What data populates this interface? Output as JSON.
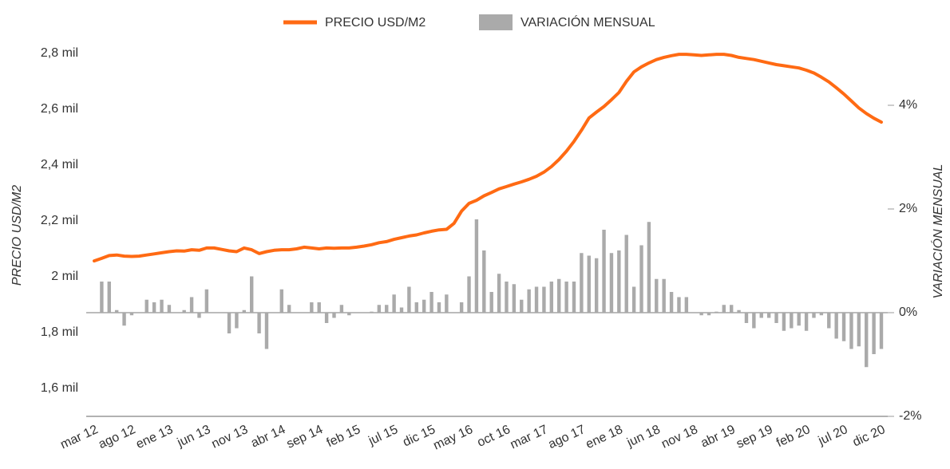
{
  "chart_data": {
    "type": "line",
    "categories": [
      "mar 12",
      null,
      null,
      null,
      null,
      "ago 12",
      null,
      null,
      null,
      null,
      "ene 13",
      null,
      null,
      null,
      null,
      "jun 13",
      null,
      null,
      null,
      null,
      "nov 13",
      null,
      null,
      null,
      null,
      "abr 14",
      null,
      null,
      null,
      null,
      "sep 14",
      null,
      null,
      null,
      null,
      "feb 15",
      null,
      null,
      null,
      null,
      "jul 15",
      null,
      null,
      null,
      null,
      "dic 15",
      null,
      null,
      null,
      null,
      "may 16",
      null,
      null,
      null,
      null,
      "oct 16",
      null,
      null,
      null,
      null,
      "mar 17",
      null,
      null,
      null,
      null,
      "ago 17",
      null,
      null,
      null,
      null,
      "ene 18",
      null,
      null,
      null,
      null,
      "jun 18",
      null,
      null,
      null,
      null,
      "nov 18",
      null,
      null,
      null,
      null,
      "abr 19",
      null,
      null,
      null,
      null,
      "sep 19",
      null,
      null,
      null,
      null,
      "feb 20",
      null,
      null,
      null,
      null,
      "jul 20",
      null,
      null,
      null,
      null,
      "dic 20"
    ],
    "series": [
      {
        "name": "PRECIO USD/M2",
        "type": "line",
        "color": "#ff6a13",
        "values": [
          2057,
          2066,
          2076,
          2078,
          2074,
          2073,
          2074,
          2078,
          2082,
          2086,
          2090,
          2093,
          2092,
          2097,
          2095,
          2103,
          2103,
          2098,
          2093,
          2090,
          2103,
          2097,
          2083,
          2090,
          2095,
          2097,
          2097,
          2100,
          2106,
          2103,
          2100,
          2103,
          2102,
          2103,
          2103,
          2106,
          2110,
          2115,
          2122,
          2126,
          2134,
          2140,
          2146,
          2150,
          2157,
          2163,
          2168,
          2170,
          2191,
          2235,
          2263,
          2274,
          2290,
          2302,
          2315,
          2323,
          2332,
          2340,
          2349,
          2360,
          2375,
          2395,
          2420,
          2450,
          2485,
          2525,
          2569,
          2590,
          2610,
          2634,
          2660,
          2700,
          2734,
          2752,
          2766,
          2778,
          2786,
          2792,
          2797,
          2797,
          2795,
          2793,
          2795,
          2797,
          2797,
          2793,
          2786,
          2782,
          2778,
          2772,
          2766,
          2760,
          2756,
          2752,
          2748,
          2740,
          2730,
          2715,
          2698,
          2677,
          2655,
          2630,
          2605,
          2585,
          2568,
          2554
        ]
      },
      {
        "name": "VARIACIÓN MENSUAL",
        "type": "bar",
        "axis": "y2",
        "color": "#aaaaaa",
        "values": [
          0,
          0.6,
          0.6,
          0.05,
          -0.25,
          -0.05,
          0,
          0.25,
          0.2,
          0.25,
          0.15,
          0,
          0.05,
          0.3,
          -0.1,
          0.45,
          0,
          0,
          -0.4,
          -0.3,
          0.05,
          0.7,
          -0.4,
          -0.7,
          0,
          0.45,
          0.15,
          0,
          0,
          0.2,
          0.2,
          -0.2,
          -0.1,
          0.15,
          -0.05,
          0,
          0,
          0.02,
          0.15,
          0.15,
          0.35,
          0.1,
          0.5,
          0.2,
          0.25,
          0.4,
          0.2,
          0.35,
          0,
          0.2,
          0.7,
          1.8,
          1.2,
          0.4,
          0.75,
          0.6,
          0.55,
          0.25,
          0.45,
          0.5,
          0.5,
          0.6,
          0.65,
          0.6,
          0.6,
          1.15,
          1.1,
          1.05,
          1.6,
          1.15,
          1.2,
          1.5,
          0.5,
          1.3,
          1.75,
          0.65,
          0.65,
          0.4,
          0.3,
          0.3,
          0,
          -0.05,
          -0.05,
          0.02,
          0.15,
          0.15,
          0.05,
          -0.2,
          -0.3,
          -0.1,
          -0.1,
          -0.2,
          -0.35,
          -0.3,
          -0.25,
          -0.35,
          -0.1,
          -0.05,
          -0.3,
          -0.5,
          -0.55,
          -0.7,
          -0.65,
          -1.05,
          -0.8,
          -0.7
        ]
      }
    ],
    "ylabel": "PRECIO USD/M2",
    "y2label": "VARIACIÓN MENSUAL",
    "ylim": [
      1500,
      2800
    ],
    "yticks": [
      {
        "value": 1600,
        "label": "1,6 mil"
      },
      {
        "value": 1800,
        "label": "1,8 mil"
      },
      {
        "value": 2000,
        "label": "2 mil"
      },
      {
        "value": 2200,
        "label": "2,2 mil"
      },
      {
        "value": 2400,
        "label": "2,4 mil"
      },
      {
        "value": 2600,
        "label": "2,6 mil"
      },
      {
        "value": 2800,
        "label": "2,8 mil"
      }
    ],
    "y2lim": [
      -2,
      5
    ],
    "y2ticks": [
      {
        "value": -2,
        "label": "-2%"
      },
      {
        "value": 0,
        "label": "0%"
      },
      {
        "value": 2,
        "label": "2%"
      },
      {
        "value": 4,
        "label": "4%"
      }
    ],
    "legend": "top",
    "grid": false
  }
}
